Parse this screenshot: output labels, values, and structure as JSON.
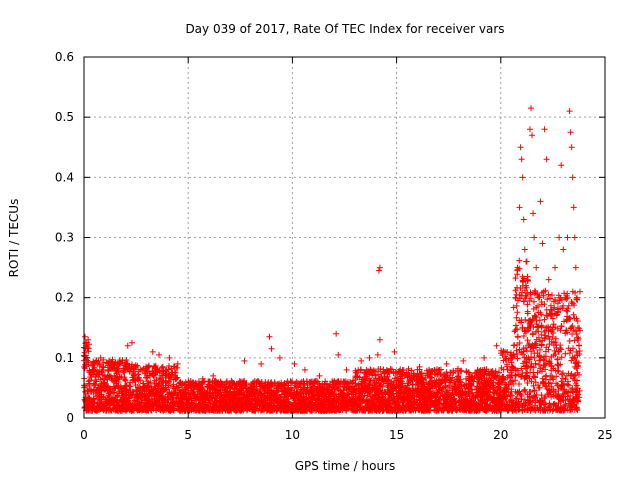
{
  "chart_data": {
    "type": "scatter",
    "title": "Day 039 of 2017, Rate Of TEC Index for receiver vars",
    "xlabel": "GPS time / hours",
    "ylabel": "ROTI / TECUs",
    "xlim": [
      0,
      25
    ],
    "ylim": [
      0,
      0.6
    ],
    "xticks": [
      "0",
      "5",
      "10",
      "15",
      "20",
      "25"
    ],
    "yticks": [
      "0",
      "0.1",
      "0.2",
      "0.3",
      "0.4",
      "0.5",
      "0.6"
    ],
    "grid": true,
    "marker": "+",
    "color": "#ff0000",
    "series": [
      {
        "name": "",
        "points": [
          [
            0.05,
            0.135
          ],
          [
            0.1,
            0.12
          ],
          [
            0.2,
            0.13
          ],
          [
            0.5,
            0.09
          ],
          [
            0.8,
            0.1
          ],
          [
            1.2,
            0.095
          ],
          [
            1.7,
            0.09
          ],
          [
            2.1,
            0.12
          ],
          [
            2.3,
            0.125
          ],
          [
            3.3,
            0.11
          ],
          [
            3.6,
            0.105
          ],
          [
            4.1,
            0.1
          ],
          [
            4.5,
            0.09
          ],
          [
            5.7,
            0.065
          ],
          [
            6.2,
            0.07
          ],
          [
            7.7,
            0.095
          ],
          [
            8.5,
            0.09
          ],
          [
            8.9,
            0.135
          ],
          [
            9.0,
            0.115
          ],
          [
            9.4,
            0.1
          ],
          [
            10.1,
            0.09
          ],
          [
            10.6,
            0.08
          ],
          [
            11.3,
            0.07
          ],
          [
            12.1,
            0.14
          ],
          [
            12.2,
            0.105
          ],
          [
            12.6,
            0.08
          ],
          [
            13.3,
            0.095
          ],
          [
            13.7,
            0.1
          ],
          [
            14.2,
            0.25
          ],
          [
            14.15,
            0.245
          ],
          [
            14.2,
            0.13
          ],
          [
            14.1,
            0.105
          ],
          [
            14.9,
            0.11
          ],
          [
            16.1,
            0.085
          ],
          [
            17.4,
            0.09
          ],
          [
            18.2,
            0.095
          ],
          [
            19.2,
            0.1
          ],
          [
            19.8,
            0.12
          ],
          [
            20.2,
            0.11
          ],
          [
            20.7,
            0.2
          ],
          [
            20.8,
            0.25
          ],
          [
            20.9,
            0.35
          ],
          [
            20.95,
            0.45
          ],
          [
            21.0,
            0.43
          ],
          [
            21.05,
            0.4
          ],
          [
            21.1,
            0.33
          ],
          [
            21.15,
            0.28
          ],
          [
            21.2,
            0.22
          ],
          [
            21.3,
            0.15
          ],
          [
            21.4,
            0.48
          ],
          [
            21.45,
            0.515
          ],
          [
            21.5,
            0.47
          ],
          [
            21.55,
            0.34
          ],
          [
            21.6,
            0.3
          ],
          [
            21.7,
            0.25
          ],
          [
            21.8,
            0.2
          ],
          [
            21.9,
            0.36
          ],
          [
            22.0,
            0.29
          ],
          [
            22.1,
            0.48
          ],
          [
            22.2,
            0.43
          ],
          [
            22.3,
            0.23
          ],
          [
            22.4,
            0.18
          ],
          [
            22.6,
            0.25
          ],
          [
            22.8,
            0.3
          ],
          [
            22.9,
            0.42
          ],
          [
            23.0,
            0.28
          ],
          [
            23.1,
            0.2
          ],
          [
            23.2,
            0.3
          ],
          [
            23.3,
            0.51
          ],
          [
            23.35,
            0.475
          ],
          [
            23.4,
            0.45
          ],
          [
            23.45,
            0.4
          ],
          [
            23.5,
            0.35
          ],
          [
            23.55,
            0.3
          ],
          [
            23.6,
            0.25
          ],
          [
            23.65,
            0.2
          ],
          [
            23.7,
            0.15
          ],
          [
            23.75,
            0.12
          ]
        ]
      }
    ]
  }
}
